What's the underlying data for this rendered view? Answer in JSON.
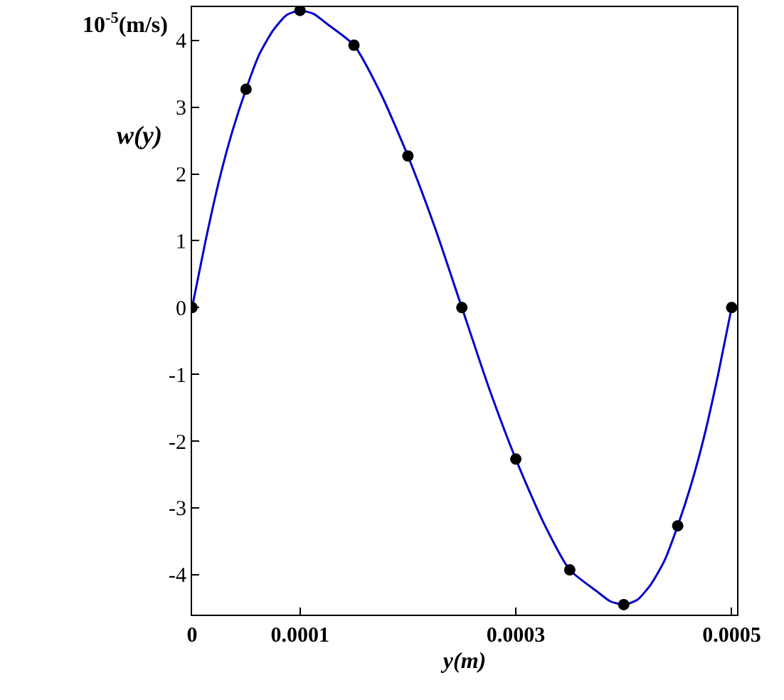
{
  "chart_data": {
    "type": "line",
    "xlabel": "y(m)",
    "ylabel": "w(y)",
    "annotations": [
      "10$^{-5}$(m/s)"
    ],
    "xlim": [
      0,
      0.000505
    ],
    "xticks": [
      0,
      0.0001,
      0.0003,
      0.0005
    ],
    "ylim": [
      -4.6,
      4.5
    ],
    "yticks": [
      -4,
      -3,
      -2,
      -1,
      0,
      1,
      2,
      3,
      4
    ],
    "grid": false,
    "series": [
      {
        "type": "line",
        "color": "#0000cc",
        "line_style": "solid",
        "x": [
          0,
          1.25e-05,
          2.5e-05,
          3.75e-05,
          5e-05,
          6.25e-05,
          7.5e-05,
          8.75e-05,
          0.0001,
          0.0001125,
          0.000125,
          0.00015,
          0.000175,
          0.0002,
          0.000225,
          0.00025,
          0.000275,
          0.0003,
          0.000325,
          0.00035,
          0.000375,
          0.0003875,
          0.0004,
          0.0004125,
          0.000425,
          0.0004375,
          0.00045,
          0.0004625,
          0.000475,
          0.0004875,
          0.0005
        ],
        "values": [
          0,
          1.0,
          1.9,
          2.65,
          3.27,
          3.8,
          4.15,
          4.38,
          4.45,
          4.4,
          4.25,
          3.93,
          3.2,
          2.27,
          1.2,
          0,
          -1.2,
          -2.27,
          -3.2,
          -3.93,
          -4.25,
          -4.4,
          -4.45,
          -4.38,
          -4.15,
          -3.8,
          -3.27,
          -2.65,
          -1.9,
          -1.0,
          0
        ]
      },
      {
        "type": "scatter",
        "marker": "circle",
        "color": "#000000",
        "x": [
          0,
          5e-05,
          0.0001,
          0.00015,
          0.0002,
          0.00025,
          0.0003,
          0.00035,
          0.0004,
          0.00045,
          0.0005
        ],
        "values": [
          0,
          3.27,
          4.45,
          3.93,
          2.27,
          0,
          -2.27,
          -3.93,
          -4.45,
          -3.27,
          0
        ]
      }
    ]
  }
}
